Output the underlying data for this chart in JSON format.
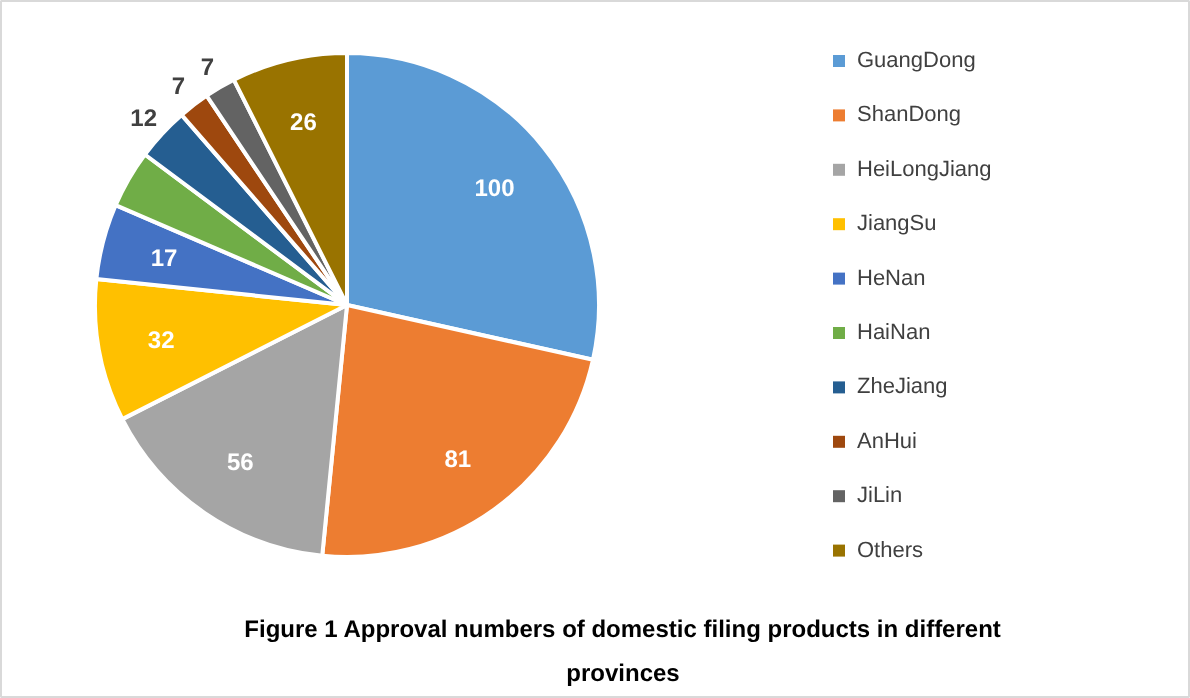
{
  "chart_data": {
    "type": "pie",
    "title": "Figure 1 Approval numbers of domestic filing products in different provinces",
    "categories": [
      "GuangDong",
      "ShanDong",
      "HeiLongJiang",
      "JiangSu",
      "HeNan",
      "HaiNan",
      "ZheJiang",
      "AnHui",
      "JiLin",
      "Others"
    ],
    "values": [
      100,
      81,
      56,
      32,
      17,
      13,
      12,
      7,
      7,
      26
    ],
    "value_labels": [
      "100",
      "81",
      "56",
      "32",
      "17",
      null,
      "12",
      "7",
      "7",
      "26"
    ],
    "colors": [
      "#5b9bd5",
      "#ed7d31",
      "#a5a5a5",
      "#ffc000",
      "#4472c4",
      "#70ad47",
      "#255e91",
      "#9e480e",
      "#636363",
      "#997300"
    ],
    "legend": "right"
  }
}
